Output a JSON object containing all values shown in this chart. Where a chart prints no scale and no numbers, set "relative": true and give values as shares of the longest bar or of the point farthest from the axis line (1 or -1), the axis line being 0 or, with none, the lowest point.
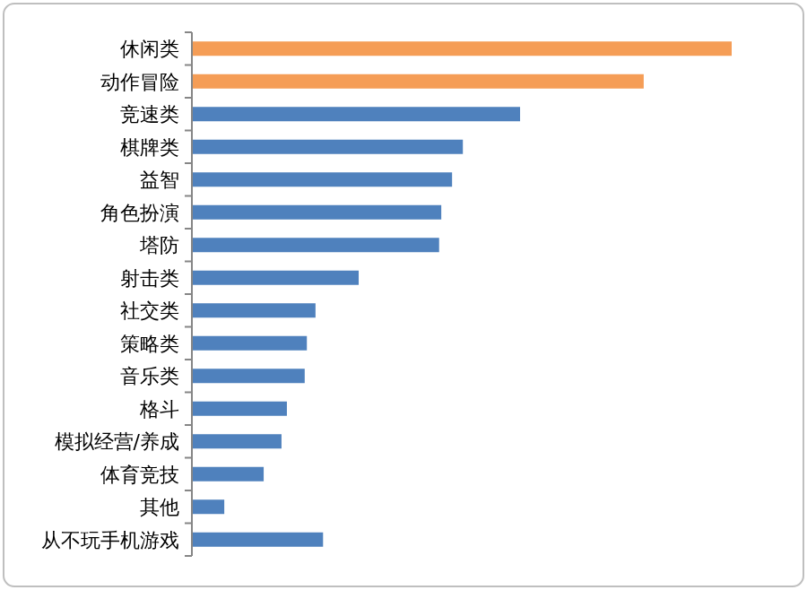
{
  "chart_data": {
    "type": "bar",
    "orientation": "horizontal",
    "relative": true,
    "categories": [
      "休闲类",
      "动作冒险",
      "竞速类",
      "棋牌类",
      "益智",
      "角色扮演",
      "塔防",
      "射击类",
      "社交类",
      "策略类",
      "音乐类",
      "格斗",
      "模拟经营/养成",
      "体育竞技",
      "其他",
      "从不玩手机游戏"
    ],
    "values": [
      1,
      0.837,
      0.608,
      0.502,
      0.482,
      0.462,
      0.458,
      0.309,
      0.229,
      0.213,
      0.209,
      0.176,
      0.166,
      0.133,
      0.06,
      0.243
    ],
    "colors": [
      "#f59d56",
      "#f59d56",
      "#4f81bd",
      "#4f81bd",
      "#4f81bd",
      "#4f81bd",
      "#4f81bd",
      "#4f81bd",
      "#4f81bd",
      "#4f81bd",
      "#4f81bd",
      "#4f81bd",
      "#4f81bd",
      "#4f81bd",
      "#4f81bd",
      "#4f81bd"
    ]
  }
}
